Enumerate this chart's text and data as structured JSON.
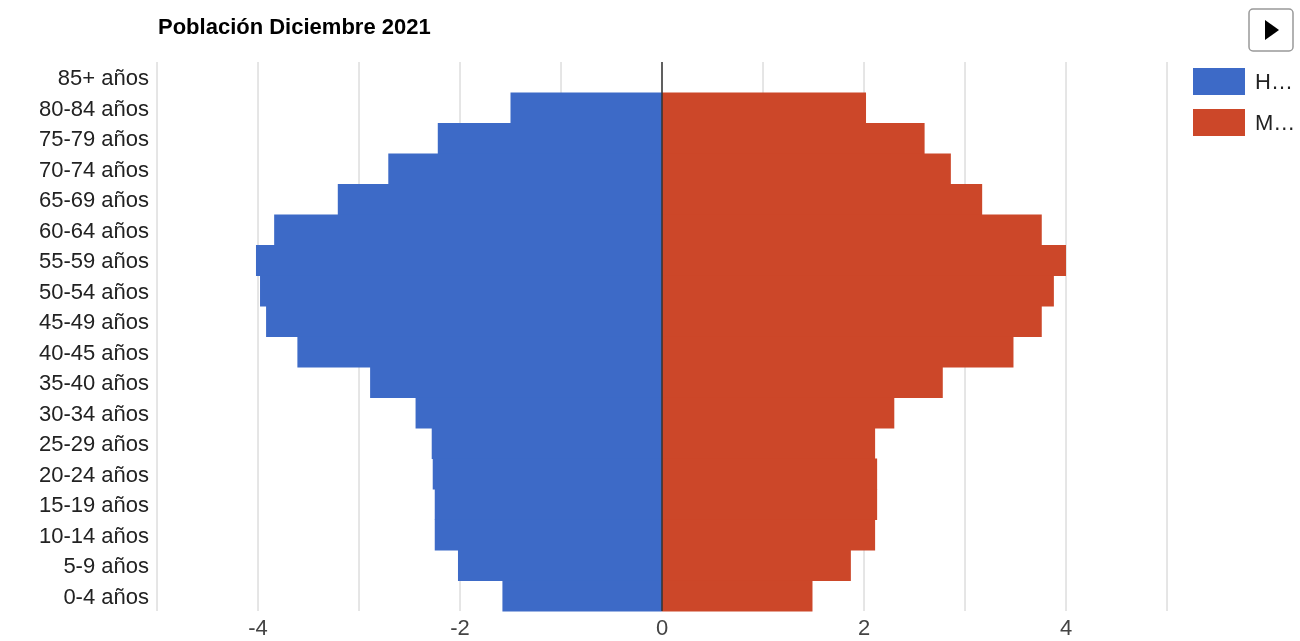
{
  "chart_data": {
    "type": "bar",
    "title": "Población Diciembre 2021",
    "orientation": "horizontal",
    "stacked": true,
    "categories": [
      "85+ años",
      "80-84 años",
      "75-79 años",
      "70-74 años",
      "65-69 años",
      "60-64 años",
      "55-59 años",
      "50-54 años",
      "45-49 años",
      "40-45 años",
      "35-40 años",
      "30-34 años",
      "25-29 años",
      "20-24 años",
      "15-19 años",
      "10-14 años",
      "5-9 años",
      "0-4 años"
    ],
    "series": [
      {
        "name": "H…",
        "color": "#3d6ac7",
        "values": [
          null,
          -1.5,
          -2.22,
          -2.71,
          -3.21,
          -3.84,
          -4.02,
          -3.98,
          -3.92,
          -3.61,
          -2.89,
          -2.44,
          -2.28,
          -2.27,
          -2.25,
          -2.25,
          -2.02,
          -1.58
        ]
      },
      {
        "name": "M…",
        "color": "#cc4729",
        "values": [
          null,
          2.02,
          2.6,
          2.86,
          3.17,
          3.76,
          4.0,
          3.88,
          3.76,
          3.48,
          2.78,
          2.3,
          2.11,
          2.13,
          2.13,
          2.11,
          1.87,
          1.49
        ]
      }
    ],
    "xlim": [
      -5,
      5
    ],
    "xticks": [
      {
        "value": -5,
        "label": null
      },
      -4,
      {
        "value": -3,
        "label": null
      },
      -2,
      {
        "value": -1,
        "label": null
      },
      0,
      {
        "value": 1,
        "label": null
      },
      2,
      {
        "value": 3,
        "label": null
      },
      4,
      {
        "value": 5,
        "label": null
      }
    ],
    "grid": "x",
    "legend": "top right"
  }
}
